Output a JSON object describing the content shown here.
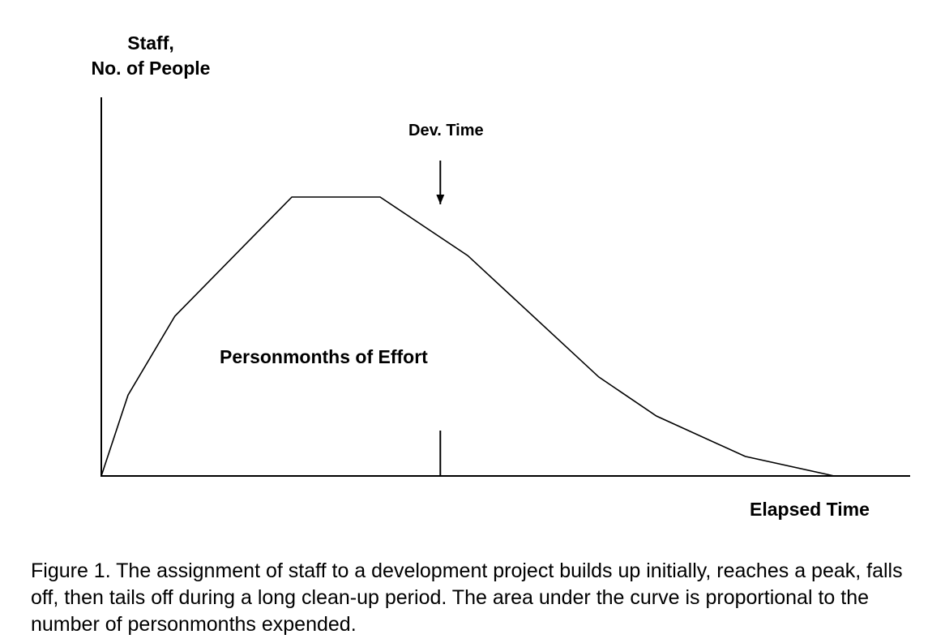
{
  "y_axis_label": {
    "line1": "Staff,",
    "line2": "No. of People"
  },
  "x_axis_label": "Elapsed Time",
  "dev_time_label": "Dev. Time",
  "area_label": "Personmonths of Effort",
  "caption": "Figure 1. The assignment of staff to a development project builds up initially, reaches a peak, falls off, then tails off during a long clean-up period. The area under the curve is proportional to the number of personmonths expended.",
  "colors": {
    "ink": "#000000",
    "background": "#ffffff"
  },
  "curve": {
    "x": [
      0,
      0.04,
      0.11,
      0.285,
      0.417,
      0.548,
      0.744,
      0.83,
      0.963,
      1.096,
      1.2
    ],
    "y": [
      0,
      0.29,
      0.573,
      1.0,
      1.0,
      0.79,
      0.355,
      0.215,
      0.07,
      0,
      0
    ]
  },
  "dev_time_x": 0.507
}
